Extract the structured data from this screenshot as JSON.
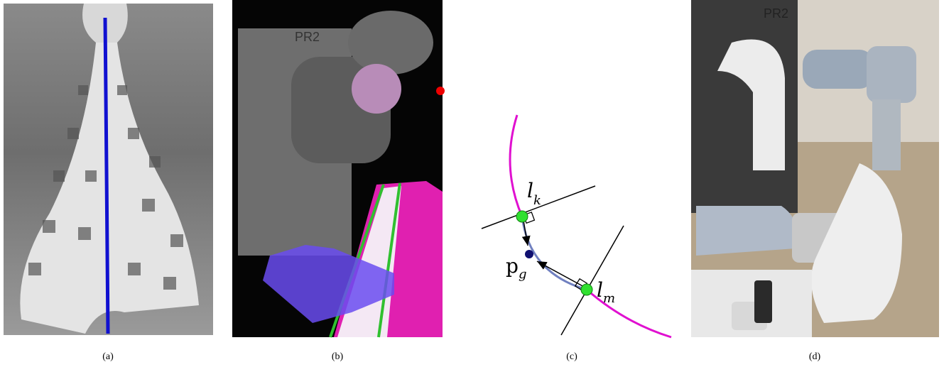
{
  "captions": [
    "(a)",
    "(b)",
    "(c)",
    "(d)"
  ],
  "diagram": {
    "labels": [
      {
        "main": "l",
        "sub": "k"
      },
      {
        "main": "p",
        "sub": "g"
      },
      {
        "main": "l",
        "sub": "m"
      }
    ]
  },
  "photo_text": {
    "panel_b": "PR2",
    "panel_d": "PR2"
  }
}
